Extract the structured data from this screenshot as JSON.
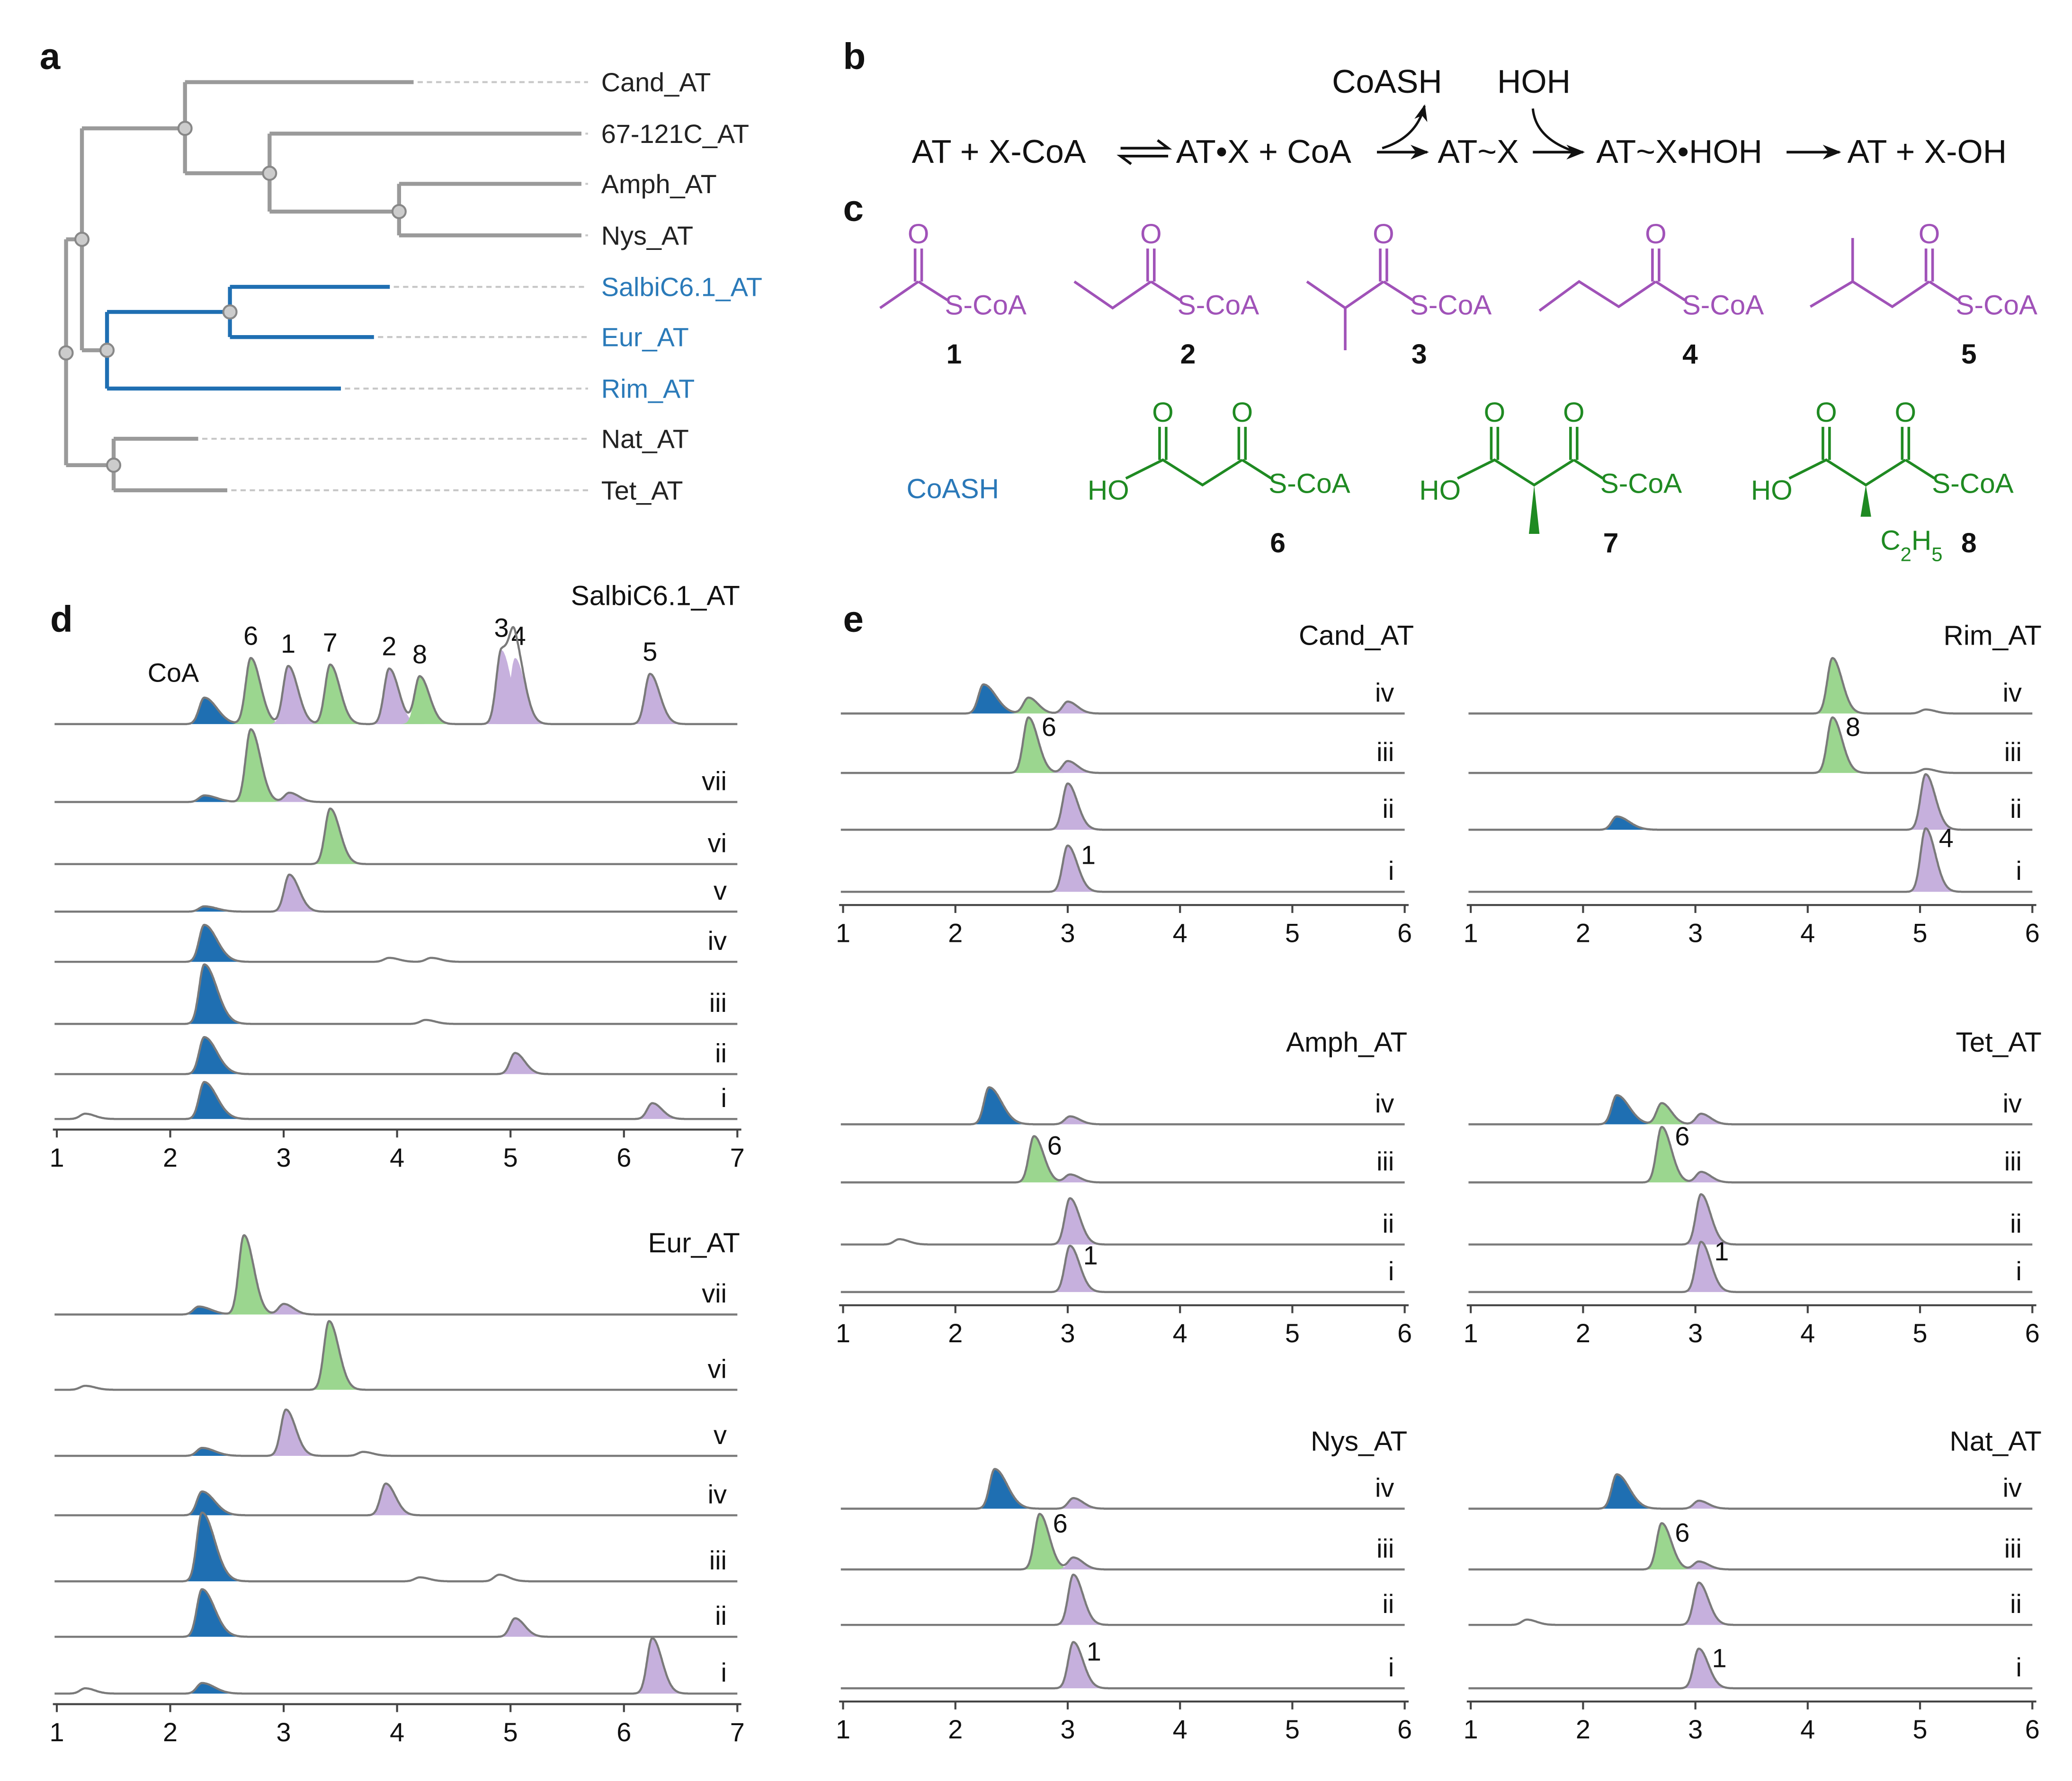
{
  "panel_labels": {
    "a": "a",
    "b": "b",
    "c": "c",
    "d": "d",
    "e": "e"
  },
  "tree": {
    "leaves": [
      {
        "name": "Cand_AT",
        "highlighted": false
      },
      {
        "name": "67-121C_AT",
        "highlighted": false
      },
      {
        "name": "Amph_AT",
        "highlighted": false
      },
      {
        "name": "Nys_AT",
        "highlighted": false
      },
      {
        "name": "SalbiC6.1_AT",
        "highlighted": true
      },
      {
        "name": "Eur_AT",
        "highlighted": true
      },
      {
        "name": "Rim_AT",
        "highlighted": true
      },
      {
        "name": "Nat_AT",
        "highlighted": false
      },
      {
        "name": "Tet_AT",
        "highlighted": false
      }
    ]
  },
  "reaction": {
    "species": [
      "AT + X-CoA",
      "AT•X + CoA",
      "AT~X",
      "AT~X•HOH",
      "AT + X-OH"
    ],
    "released": "CoASH",
    "added": "HOH"
  },
  "compounds": {
    "thioester_group": "S-CoA",
    "carbonyl_oxygen": "O",
    "acid_group": "HO",
    "coash": "CoASH",
    "ethyl": {
      "c": "C",
      "n1": "2",
      "h": "H",
      "n2": "5"
    },
    "numbers": [
      "1",
      "2",
      "3",
      "4",
      "5",
      "6",
      "7",
      "8"
    ]
  },
  "colors": {
    "CoA": "#1f6fb2",
    "malonyl_type": "#9bd68f",
    "acyl_type": "#c6b0dd",
    "trace": "#7a7a7a",
    "tree_gray": "#9a9a9a",
    "tree_highlight": "#1f6fb2"
  },
  "chart_data": [
    {
      "type": "line",
      "panel": "d",
      "title": "SalbiC6.1_AT",
      "xlim": [
        1,
        7
      ],
      "xticks": [
        "1",
        "2",
        "3",
        "4",
        "5",
        "6",
        "7"
      ],
      "xlabel": "",
      "ylabel": "",
      "traces": [
        {
          "label": "",
          "standard": true,
          "peaks": [
            {
              "compound": "CoA",
              "label": "CoA",
              "rt": 2.3,
              "height": 20
            },
            {
              "compound": "6",
              "label": "6",
              "rt": 2.71,
              "height": 50
            },
            {
              "compound": "1",
              "label": "1",
              "rt": 3.04,
              "height": 44
            },
            {
              "compound": "7",
              "label": "7",
              "rt": 3.41,
              "height": 45
            },
            {
              "compound": "2",
              "label": "2",
              "rt": 3.93,
              "height": 42
            },
            {
              "compound": "8",
              "label": "8",
              "rt": 4.2,
              "height": 36
            },
            {
              "compound": "3",
              "label": "3",
              "rt": 4.92,
              "height": 56
            },
            {
              "compound": "4",
              "label": "4",
              "rt": 5.04,
              "height": 50
            },
            {
              "compound": "5",
              "label": "5",
              "rt": 6.23,
              "height": 38
            }
          ]
        },
        {
          "label": "vii",
          "peaks": [
            {
              "compound": "CoA",
              "rt": 2.3,
              "height": 5
            },
            {
              "compound": "6",
              "rt": 2.71,
              "height": 55
            },
            {
              "compound": "1",
              "rt": 3.05,
              "height": 7
            }
          ]
        },
        {
          "label": "vi",
          "peaks": [
            {
              "compound": "7",
              "rt": 3.41,
              "height": 42
            }
          ]
        },
        {
          "label": "v",
          "peaks": [
            {
              "compound": "CoA",
              "rt": 2.3,
              "height": 4
            },
            {
              "compound": "1",
              "rt": 3.05,
              "height": 28
            }
          ]
        },
        {
          "label": "iv",
          "peaks": [
            {
              "compound": "CoA",
              "rt": 2.3,
              "height": 28
            },
            {
              "compound": "other",
              "rt": 3.93,
              "height": 3
            },
            {
              "compound": "other",
              "rt": 4.3,
              "height": 3
            }
          ]
        },
        {
          "label": "iii",
          "peaks": [
            {
              "compound": "CoA",
              "rt": 2.3,
              "height": 45
            },
            {
              "compound": "other",
              "rt": 4.25,
              "height": 3
            }
          ]
        },
        {
          "label": "ii",
          "peaks": [
            {
              "compound": "CoA",
              "rt": 2.3,
              "height": 28
            },
            {
              "compound": "4",
              "rt": 5.04,
              "height": 16
            }
          ]
        },
        {
          "label": "i",
          "peaks": [
            {
              "compound": "other",
              "rt": 1.25,
              "height": 4
            },
            {
              "compound": "CoA",
              "rt": 2.3,
              "height": 28
            },
            {
              "compound": "5",
              "rt": 6.25,
              "height": 12
            }
          ]
        }
      ]
    },
    {
      "type": "line",
      "panel": "d",
      "title": "Eur_AT",
      "xlim": [
        1,
        7
      ],
      "xticks": [
        "1",
        "2",
        "3",
        "4",
        "5",
        "6",
        "7"
      ],
      "xlabel": "",
      "ylabel": "",
      "traces": [
        {
          "label": "vii",
          "peaks": [
            {
              "compound": "CoA",
              "rt": 2.25,
              "height": 6
            },
            {
              "compound": "6",
              "rt": 2.65,
              "height": 60
            },
            {
              "compound": "1",
              "rt": 3.0,
              "height": 8
            }
          ]
        },
        {
          "label": "vi",
          "peaks": [
            {
              "compound": "other",
              "rt": 1.25,
              "height": 3
            },
            {
              "compound": "7",
              "rt": 3.4,
              "height": 52
            }
          ]
        },
        {
          "label": "v",
          "peaks": [
            {
              "compound": "CoA",
              "rt": 2.28,
              "height": 6
            },
            {
              "compound": "1",
              "rt": 3.02,
              "height": 35
            },
            {
              "compound": "other",
              "rt": 3.7,
              "height": 3
            }
          ]
        },
        {
          "label": "iv",
          "peaks": [
            {
              "compound": "CoA",
              "rt": 2.28,
              "height": 18
            },
            {
              "compound": "2",
              "rt": 3.9,
              "height": 24
            }
          ]
        },
        {
          "label": "iii",
          "peaks": [
            {
              "compound": "CoA",
              "rt": 2.28,
              "height": 52
            },
            {
              "compound": "other",
              "rt": 4.2,
              "height": 3
            },
            {
              "compound": "other",
              "rt": 4.9,
              "height": 5
            }
          ]
        },
        {
          "label": "ii",
          "peaks": [
            {
              "compound": "CoA",
              "rt": 2.28,
              "height": 36
            },
            {
              "compound": "4",
              "rt": 5.04,
              "height": 14
            }
          ]
        },
        {
          "label": "i",
          "peaks": [
            {
              "compound": "other",
              "rt": 1.25,
              "height": 4
            },
            {
              "compound": "CoA",
              "rt": 2.28,
              "height": 8
            },
            {
              "compound": "5",
              "rt": 6.25,
              "height": 42
            }
          ]
        }
      ]
    },
    {
      "type": "line",
      "panel": "e",
      "title": "Cand_AT",
      "xlim": [
        1,
        6
      ],
      "xticks": [
        "1",
        "2",
        "3",
        "4",
        "5",
        "6"
      ],
      "xlabel": "",
      "ylabel": "",
      "traces": [
        {
          "label": "iv",
          "peaks": [
            {
              "compound": "CoA",
              "rt": 2.25,
              "height": 22
            },
            {
              "compound": "6",
              "rt": 2.65,
              "height": 12
            },
            {
              "compound": "1",
              "rt": 3.0,
              "height": 9
            }
          ]
        },
        {
          "label": "iii",
          "peaks": [
            {
              "compound": "6",
              "rt": 2.65,
              "height": 42,
              "label": "6"
            },
            {
              "compound": "1",
              "rt": 3.0,
              "height": 9
            }
          ]
        },
        {
          "label": "ii",
          "peaks": [
            {
              "compound": "1",
              "rt": 3.0,
              "height": 35
            }
          ]
        },
        {
          "label": "i",
          "peaks": [
            {
              "compound": "1",
              "rt": 3.0,
              "height": 35,
              "label": "1"
            }
          ]
        }
      ]
    },
    {
      "type": "line",
      "panel": "e",
      "title": "Rim_AT",
      "xlim": [
        1,
        6
      ],
      "xticks": [
        "1",
        "2",
        "3",
        "4",
        "5",
        "6"
      ],
      "xlabel": "",
      "ylabel": "",
      "traces": [
        {
          "label": "iv",
          "peaks": [
            {
              "compound": "8",
              "rt": 4.22,
              "height": 42
            },
            {
              "compound": "other",
              "rt": 5.05,
              "height": 3
            }
          ]
        },
        {
          "label": "iii",
          "peaks": [
            {
              "compound": "8",
              "rt": 4.22,
              "height": 42,
              "label": "8"
            },
            {
              "compound": "other",
              "rt": 5.05,
              "height": 3
            }
          ]
        },
        {
          "label": "ii",
          "peaks": [
            {
              "compound": "CoA",
              "rt": 2.3,
              "height": 10
            },
            {
              "compound": "4",
              "rt": 5.05,
              "height": 42
            }
          ]
        },
        {
          "label": "i",
          "peaks": [
            {
              "compound": "4",
              "rt": 5.05,
              "height": 48,
              "label": "4"
            }
          ]
        }
      ]
    },
    {
      "type": "line",
      "panel": "e",
      "title": "Amph_AT",
      "xlim": [
        1,
        6
      ],
      "xticks": [
        "1",
        "2",
        "3",
        "4",
        "5",
        "6"
      ],
      "xlabel": "",
      "ylabel": "",
      "traces": [
        {
          "label": "iv",
          "peaks": [
            {
              "compound": "CoA",
              "rt": 2.3,
              "height": 28
            },
            {
              "compound": "1",
              "rt": 3.02,
              "height": 6
            }
          ]
        },
        {
          "label": "iii",
          "peaks": [
            {
              "compound": "6",
              "rt": 2.7,
              "height": 35,
              "label": "6"
            },
            {
              "compound": "1",
              "rt": 3.02,
              "height": 6
            }
          ]
        },
        {
          "label": "ii",
          "peaks": [
            {
              "compound": "other",
              "rt": 1.5,
              "height": 4
            },
            {
              "compound": "1",
              "rt": 3.02,
              "height": 35
            }
          ]
        },
        {
          "label": "i",
          "peaks": [
            {
              "compound": "1",
              "rt": 3.02,
              "height": 35,
              "label": "1"
            }
          ]
        }
      ]
    },
    {
      "type": "line",
      "panel": "e",
      "title": "Tet_AT",
      "xlim": [
        1,
        6
      ],
      "xticks": [
        "1",
        "2",
        "3",
        "4",
        "5",
        "6"
      ],
      "xlabel": "",
      "ylabel": "",
      "traces": [
        {
          "label": "iv",
          "peaks": [
            {
              "compound": "CoA",
              "rt": 2.3,
              "height": 22
            },
            {
              "compound": "6",
              "rt": 2.7,
              "height": 16
            },
            {
              "compound": "1",
              "rt": 3.05,
              "height": 8
            }
          ]
        },
        {
          "label": "iii",
          "peaks": [
            {
              "compound": "6",
              "rt": 2.7,
              "height": 42,
              "label": "6"
            },
            {
              "compound": "1",
              "rt": 3.05,
              "height": 8
            }
          ]
        },
        {
          "label": "ii",
          "peaks": [
            {
              "compound": "1",
              "rt": 3.05,
              "height": 38
            }
          ]
        },
        {
          "label": "i",
          "peaks": [
            {
              "compound": "1",
              "rt": 3.05,
              "height": 38,
              "label": "1"
            }
          ]
        }
      ]
    },
    {
      "type": "line",
      "panel": "e",
      "title": "Nys_AT",
      "xlim": [
        1,
        6
      ],
      "xticks": [
        "1",
        "2",
        "3",
        "4",
        "5",
        "6"
      ],
      "xlabel": "",
      "ylabel": "",
      "traces": [
        {
          "label": "iv",
          "peaks": [
            {
              "compound": "CoA",
              "rt": 2.35,
              "height": 30
            },
            {
              "compound": "1",
              "rt": 3.05,
              "height": 8
            }
          ]
        },
        {
          "label": "iii",
          "peaks": [
            {
              "compound": "6",
              "rt": 2.75,
              "height": 42,
              "label": "6"
            },
            {
              "compound": "1",
              "rt": 3.05,
              "height": 9
            }
          ]
        },
        {
          "label": "ii",
          "peaks": [
            {
              "compound": "1",
              "rt": 3.05,
              "height": 38
            }
          ]
        },
        {
          "label": "i",
          "peaks": [
            {
              "compound": "1",
              "rt": 3.05,
              "height": 35,
              "label": "1"
            }
          ]
        }
      ]
    },
    {
      "type": "line",
      "panel": "e",
      "title": "Nat_AT",
      "xlim": [
        1,
        6
      ],
      "xticks": [
        "1",
        "2",
        "3",
        "4",
        "5",
        "6"
      ],
      "xlabel": "",
      "ylabel": "",
      "traces": [
        {
          "label": "iv",
          "peaks": [
            {
              "compound": "CoA",
              "rt": 2.3,
              "height": 26
            },
            {
              "compound": "1",
              "rt": 3.03,
              "height": 6
            }
          ]
        },
        {
          "label": "iii",
          "peaks": [
            {
              "compound": "6",
              "rt": 2.7,
              "height": 35,
              "label": "6"
            },
            {
              "compound": "1",
              "rt": 3.03,
              "height": 6
            }
          ]
        },
        {
          "label": "ii",
          "peaks": [
            {
              "compound": "other",
              "rt": 1.5,
              "height": 4
            },
            {
              "compound": "1",
              "rt": 3.03,
              "height": 32
            }
          ]
        },
        {
          "label": "i",
          "peaks": [
            {
              "compound": "1",
              "rt": 3.03,
              "height": 30,
              "label": "1"
            }
          ]
        }
      ]
    }
  ]
}
